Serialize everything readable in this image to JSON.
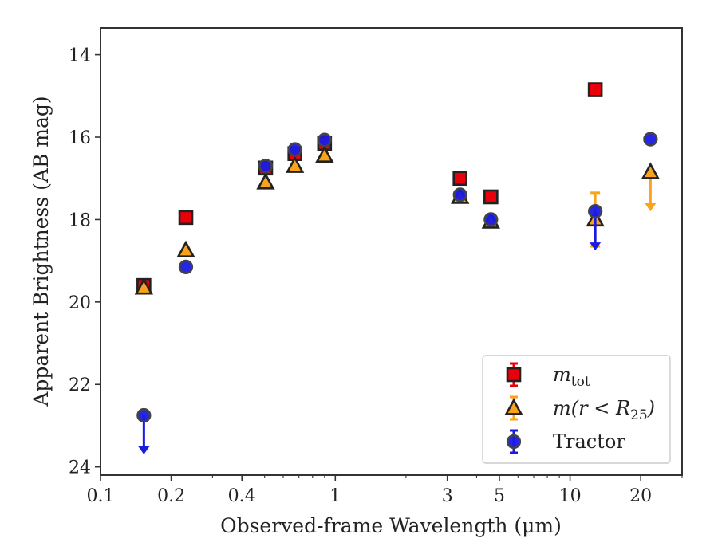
{
  "chart_data": {
    "type": "scatter",
    "xlabel": "Observed-frame Wavelength (μm)",
    "ylabel": "Apparent Brightness (AB mag)",
    "xscale": "log",
    "xlim": [
      0.1,
      30
    ],
    "ylim": [
      24.2,
      13.35
    ],
    "y_inverted": true,
    "x_ticks": [
      0.1,
      0.2,
      0.4,
      1,
      3,
      5,
      10,
      20
    ],
    "x_tick_labels": [
      "0.1",
      "0.2",
      "0.4",
      "1",
      "3",
      "5",
      "10",
      "20"
    ],
    "y_ticks": [
      14,
      16,
      18,
      20,
      22,
      24
    ],
    "y_tick_labels": [
      "14",
      "16",
      "18",
      "20",
      "22",
      "24"
    ],
    "grid": false,
    "legend_position": "lower-right",
    "series": [
      {
        "name": "m_tot",
        "legend_label": {
          "base": "m",
          "sub": "tot",
          "rest": ""
        },
        "marker": "square",
        "color": "#e8000b",
        "edge": "#222222",
        "points": [
          {
            "x": 0.153,
            "y": 19.6
          },
          {
            "x": 0.231,
            "y": 17.95
          },
          {
            "x": 0.505,
            "y": 16.75
          },
          {
            "x": 0.673,
            "y": 16.4
          },
          {
            "x": 0.9,
            "y": 16.15
          },
          {
            "x": 3.4,
            "y": 17.0
          },
          {
            "x": 4.6,
            "y": 17.45
          },
          {
            "x": 12.8,
            "y": 14.85
          }
        ]
      },
      {
        "name": "m(r < R25)",
        "legend_label": {
          "base": "m(r < R",
          "sub": "25",
          "rest": ")"
        },
        "marker": "triangle",
        "color": "#f9a21a",
        "edge": "#222222",
        "points": [
          {
            "x": 0.153,
            "y": 19.65
          },
          {
            "x": 0.231,
            "y": 18.75
          },
          {
            "x": 0.505,
            "y": 17.1
          },
          {
            "x": 0.673,
            "y": 16.7
          },
          {
            "x": 0.9,
            "y": 16.45
          },
          {
            "x": 3.4,
            "y": 17.45
          },
          {
            "x": 4.6,
            "y": 18.05
          },
          {
            "x": 12.8,
            "y": 18.0,
            "yerr": 0.65
          },
          {
            "x": 22.0,
            "y": 16.85,
            "upper_limit": true
          }
        ]
      },
      {
        "name": "Tractor",
        "legend_label": {
          "base": "Tractor",
          "sub": "",
          "rest": ""
        },
        "marker": "circle",
        "color": "#1a1ae6",
        "edge": "#444444",
        "points": [
          {
            "x": 0.153,
            "y": 22.75,
            "upper_limit": true
          },
          {
            "x": 0.231,
            "y": 19.15
          },
          {
            "x": 0.505,
            "y": 16.7
          },
          {
            "x": 0.673,
            "y": 16.3
          },
          {
            "x": 0.9,
            "y": 16.07
          },
          {
            "x": 3.4,
            "y": 17.4
          },
          {
            "x": 4.6,
            "y": 18.0
          },
          {
            "x": 12.8,
            "y": 17.8,
            "upper_limit": true
          },
          {
            "x": 22.0,
            "y": 16.05
          }
        ]
      }
    ]
  }
}
